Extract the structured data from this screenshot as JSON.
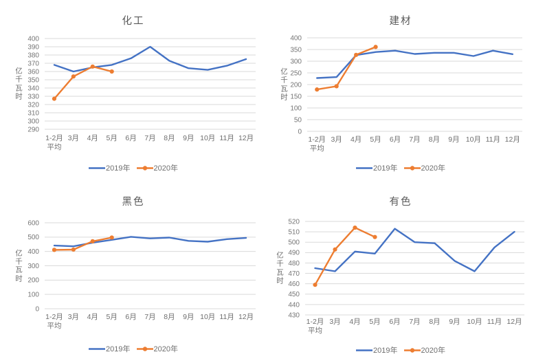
{
  "page": {
    "background": "#ffffff",
    "description_names": [
      "chemical",
      "building-materials",
      "ferrous",
      "nonferrous"
    ]
  },
  "colors": {
    "series_2019": "#4472c4",
    "series_2020": "#ed7d31",
    "gridline": "#d9d9d9",
    "tick_text": "#757575",
    "label_text": "#6e6e6e",
    "title_text": "#595959"
  },
  "chart_data": [
    {
      "type": "line",
      "title": "化工",
      "ylabel": "亿千瓦时",
      "categories": [
        "1-2月\n平均",
        "3月",
        "4月",
        "5月",
        "6月",
        "7月",
        "8月",
        "9月",
        "10月",
        "11月",
        "12月"
      ],
      "ylim": [
        290,
        400
      ],
      "ytick_step": 10,
      "grid": true,
      "legend_position": "bottom",
      "series": [
        {
          "name": "2019年",
          "color_key": "series_2019",
          "marker": false,
          "values": [
            368,
            360,
            365,
            368,
            376,
            390,
            373,
            364,
            362,
            367,
            375
          ]
        },
        {
          "name": "2020年",
          "color_key": "series_2020",
          "marker": true,
          "values": [
            327,
            354,
            366,
            360
          ]
        }
      ]
    },
    {
      "type": "line",
      "title": "建材",
      "ylabel": "亿千瓦时",
      "categories": [
        "1-2月\n平均",
        "3月",
        "4月",
        "5月",
        "6月",
        "7月",
        "8月",
        "9月",
        "10月",
        "11月",
        "12月"
      ],
      "ylim": [
        0,
        400
      ],
      "ytick_step": 50,
      "grid": true,
      "legend_position": "bottom",
      "series": [
        {
          "name": "2019年",
          "color_key": "series_2019",
          "marker": false,
          "values": [
            228,
            232,
            326,
            339,
            345,
            331,
            336,
            336,
            322,
            345,
            330
          ]
        },
        {
          "name": "2020年",
          "color_key": "series_2020",
          "marker": true,
          "values": [
            179,
            193,
            327,
            361
          ]
        }
      ]
    },
    {
      "type": "line",
      "title": "黑色",
      "ylabel": "亿千瓦时",
      "categories": [
        "1-2月\n平均",
        "3月",
        "4月",
        "5月",
        "6月",
        "7月",
        "8月",
        "9月",
        "10月",
        "11月",
        "12月"
      ],
      "ylim": [
        0,
        600
      ],
      "ytick_step": 100,
      "grid": true,
      "legend_position": "bottom",
      "series": [
        {
          "name": "2019年",
          "color_key": "series_2019",
          "marker": false,
          "values": [
            441,
            436,
            461,
            481,
            502,
            491,
            497,
            474,
            468,
            486,
            495
          ]
        },
        {
          "name": "2020年",
          "color_key": "series_2020",
          "marker": true,
          "values": [
            411,
            413,
            471,
            497
          ]
        }
      ]
    },
    {
      "type": "line",
      "title": "有色",
      "ylabel": "亿千瓦时",
      "categories": [
        "1-2月\n平均",
        "3月",
        "4月",
        "5月",
        "6月",
        "7月",
        "8月",
        "9月",
        "10月",
        "11月",
        "12月"
      ],
      "ylim": [
        430,
        520
      ],
      "ytick_step": 10,
      "grid": true,
      "legend_position": "bottom",
      "series": [
        {
          "name": "2019年",
          "color_key": "series_2019",
          "marker": false,
          "values": [
            475,
            472,
            491,
            489,
            513,
            500,
            499,
            482,
            472,
            495,
            510
          ]
        },
        {
          "name": "2020年",
          "color_key": "series_2020",
          "marker": true,
          "values": [
            459,
            493,
            514,
            505
          ]
        }
      ]
    }
  ]
}
